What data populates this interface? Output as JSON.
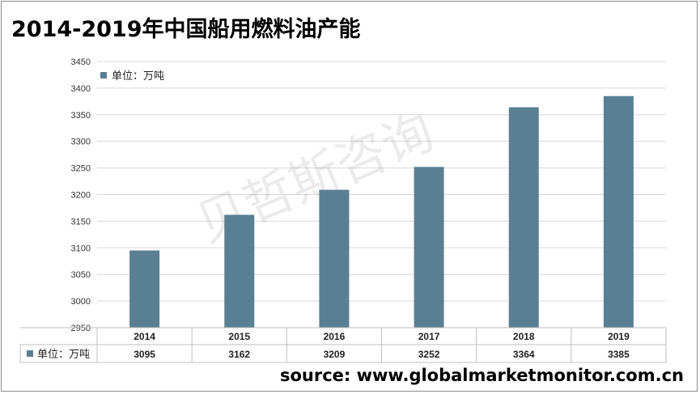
{
  "title": "2014-2019年中国船用燃料油产能",
  "source": "source: www.globalmarketmonitor.com.cn",
  "watermark": "贝哲斯咨询",
  "colors": {
    "bar": "#5a7f93",
    "grid": "#d9d9d9",
    "axis": "#bfbfbf"
  },
  "chart_data": {
    "type": "bar",
    "categories": [
      "2014",
      "2015",
      "2016",
      "2017",
      "2018",
      "2019"
    ],
    "series": [
      {
        "name": "单位：万吨",
        "values": [
          3095,
          3162,
          3209,
          3252,
          3364,
          3385
        ]
      }
    ],
    "ylim": [
      2950,
      3450
    ],
    "ytick_step": 50,
    "legend": "top-left",
    "grid": true,
    "data_table": true
  }
}
